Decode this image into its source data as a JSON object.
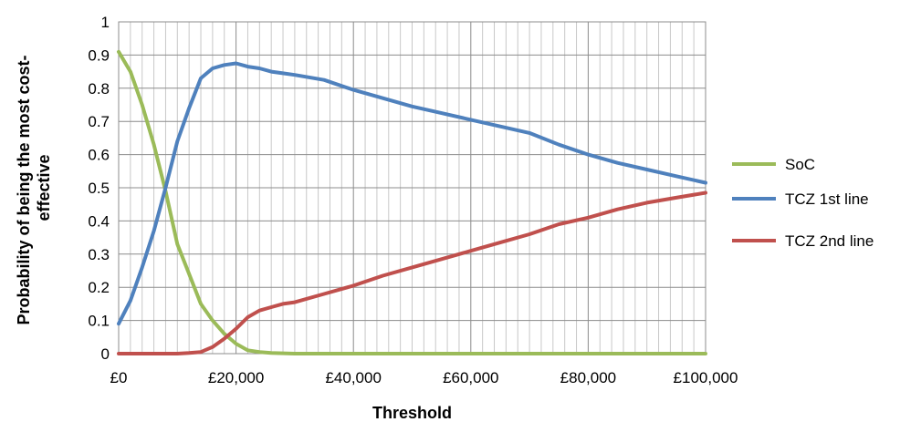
{
  "chart_data": {
    "type": "line",
    "title": "",
    "xlabel": "Threshold",
    "ylabel_lines": [
      "Probability of being the most cost-",
      "effective"
    ],
    "xlim": [
      0,
      100000
    ],
    "ylim": [
      0,
      1
    ],
    "x_ticks": [
      0,
      20000,
      40000,
      60000,
      80000,
      100000
    ],
    "x_tick_labels": [
      "£0",
      "£20,000",
      "£40,000",
      "£60,000",
      "£80,000",
      "£100,000"
    ],
    "y_ticks": [
      0,
      0.1,
      0.2,
      0.3,
      0.4,
      0.5,
      0.6,
      0.7,
      0.8,
      0.9,
      1
    ],
    "y_tick_labels": [
      "0",
      "0.1",
      "0.2",
      "0.3",
      "0.4",
      "0.5",
      "0.6",
      "0.7",
      "0.8",
      "0.9",
      "1"
    ],
    "grid": true,
    "legend_position": "right",
    "x": [
      0,
      2000,
      4000,
      6000,
      8000,
      10000,
      12000,
      14000,
      16000,
      18000,
      20000,
      22000,
      24000,
      26000,
      28000,
      30000,
      35000,
      40000,
      45000,
      50000,
      55000,
      60000,
      65000,
      70000,
      75000,
      80000,
      85000,
      90000,
      95000,
      100000
    ],
    "series": [
      {
        "name": "SoC",
        "color": "#9bbb59",
        "values": [
          0.91,
          0.85,
          0.75,
          0.63,
          0.49,
          0.33,
          0.24,
          0.15,
          0.1,
          0.06,
          0.03,
          0.01,
          0.005,
          0.002,
          0.001,
          0.0,
          0.0,
          0.0,
          0.0,
          0.0,
          0.0,
          0.0,
          0.0,
          0.0,
          0.0,
          0.0,
          0.0,
          0.0,
          0.0,
          0.0
        ]
      },
      {
        "name": "TCZ 1st line",
        "color": "#4f81bd",
        "values": [
          0.09,
          0.16,
          0.26,
          0.37,
          0.5,
          0.64,
          0.74,
          0.83,
          0.86,
          0.87,
          0.875,
          0.865,
          0.86,
          0.85,
          0.845,
          0.84,
          0.825,
          0.795,
          0.77,
          0.745,
          0.725,
          0.705,
          0.685,
          0.665,
          0.63,
          0.6,
          0.575,
          0.555,
          0.535,
          0.515
        ]
      },
      {
        "name": "TCZ 2nd line",
        "color": "#c0504d",
        "values": [
          0.0,
          0.0,
          0.0,
          0.0,
          0.0,
          0.0,
          0.002,
          0.005,
          0.02,
          0.045,
          0.075,
          0.11,
          0.13,
          0.14,
          0.15,
          0.155,
          0.18,
          0.205,
          0.235,
          0.26,
          0.285,
          0.31,
          0.335,
          0.36,
          0.39,
          0.41,
          0.435,
          0.455,
          0.47,
          0.485
        ]
      }
    ]
  }
}
